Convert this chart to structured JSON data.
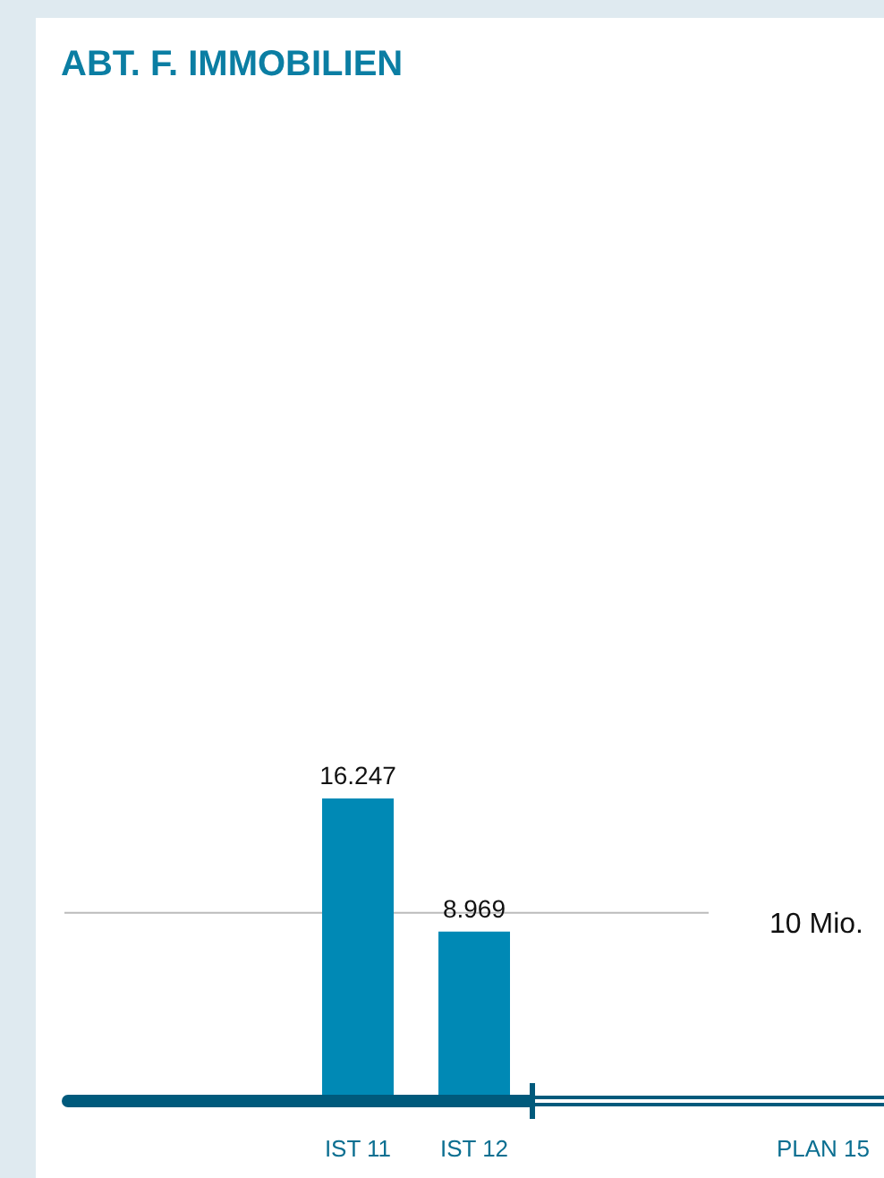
{
  "chart_data": {
    "type": "bar",
    "title": "ABT. F. IMMOBILIEN",
    "categories": [
      "IST 11",
      "IST 12",
      null,
      null,
      "PLAN 15"
    ],
    "values": [
      16.247,
      8.969,
      null,
      null,
      null
    ],
    "color": "#0089b5",
    "data_labels": true,
    "ref_lines": [
      {
        "axis": "y",
        "value": 10,
        "label": "10 Mio.",
        "color": "#bbbbbb"
      }
    ]
  }
}
